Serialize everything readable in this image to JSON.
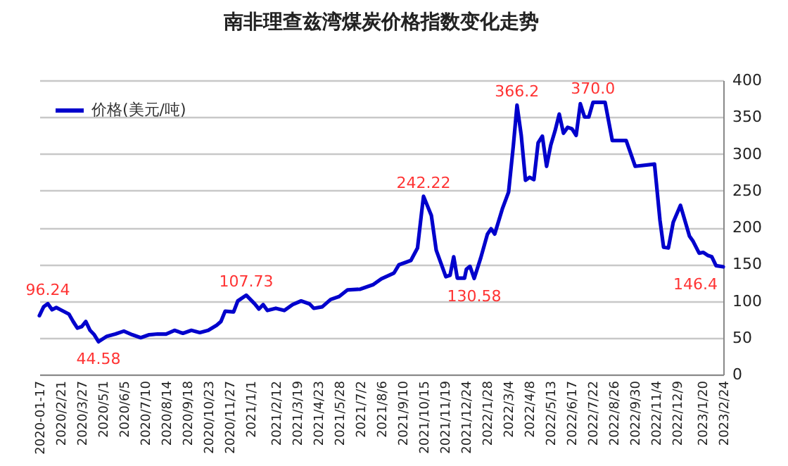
{
  "chart_data": {
    "type": "line",
    "title": "南非理查兹湾煤炭价格指数变化走势",
    "x": [
      "2020-01-17",
      "2020-01-24",
      "2020-01-31",
      "2020-02-07",
      "2020-02-14",
      "2020-02-21",
      "2020-03-06",
      "2020-03-13",
      "2020-03-20",
      "2020-03-27",
      "2020-04-03",
      "2020-04-10",
      "2020-04-17",
      "2020-04-24",
      "2020-05-08",
      "2020-05-22",
      "2020-06-05",
      "2020-06-19",
      "2020-07-03",
      "2020-07-17",
      "2020-07-31",
      "2020-08-14",
      "2020-08-28",
      "2020-09-11",
      "2020-09-25",
      "2020-10-09",
      "2020-10-23",
      "2020-11-06",
      "2020-11-13",
      "2020-11-20",
      "2020-12-04",
      "2020-12-11",
      "2020-12-25",
      "2021-01-08",
      "2021-01-15",
      "2021-01-22",
      "2021-01-29",
      "2021-02-12",
      "2021-02-26",
      "2021-03-12",
      "2021-03-26",
      "2021-04-09",
      "2021-04-16",
      "2021-04-30",
      "2021-05-14",
      "2021-05-28",
      "2021-06-11",
      "2021-07-02",
      "2021-07-23",
      "2021-08-06",
      "2021-08-27",
      "2021-09-04",
      "2021-09-24",
      "2021-10-05",
      "2021-10-13",
      "2021-10-15",
      "2021-10-28",
      "2021-11-05",
      "2021-11-21",
      "2021-11-28",
      "2021-12-04",
      "2021-12-10",
      "2021-12-22",
      "2021-12-25",
      "2021-12-31",
      "2022-01-07",
      "2022-01-18",
      "2022-01-29",
      "2022-02-04",
      "2022-02-10",
      "2022-02-23",
      "2022-03-05",
      "2022-03-13",
      "2022-03-19",
      "2022-03-26",
      "2022-04-02",
      "2022-04-09",
      "2022-04-16",
      "2022-04-23",
      "2022-04-30",
      "2022-05-07",
      "2022-05-14",
      "2022-05-21",
      "2022-05-28",
      "2022-06-04",
      "2022-06-11",
      "2022-06-18",
      "2022-06-25",
      "2022-07-02",
      "2022-07-09",
      "2022-07-16",
      "2022-07-23",
      "2022-08-12",
      "2022-08-24",
      "2022-09-16",
      "2022-10-01",
      "2022-11-02",
      "2022-11-11",
      "2022-11-17",
      "2022-11-25",
      "2022-12-03",
      "2022-12-15",
      "2022-12-30",
      "2023-01-05",
      "2023-01-15",
      "2023-01-22",
      "2023-01-29",
      "2023-02-05",
      "2023-02-12",
      "2023-02-24"
    ],
    "series": [
      {
        "name": "价格(美元/吨)",
        "color": "#0000cc",
        "values": [
          80,
          92,
          96.24,
          88,
          91,
          88,
          82,
          72,
          63,
          65,
          72,
          60,
          54,
          44.58,
          52,
          55,
          59,
          54,
          50,
          54,
          55,
          55,
          60,
          56,
          60,
          57,
          60,
          67,
          72,
          86,
          85,
          100,
          107.73,
          96,
          89,
          95,
          87,
          90,
          87,
          95,
          100,
          96,
          90,
          92,
          102,
          106,
          115,
          116,
          122,
          130,
          138,
          149,
          155,
          172,
          229,
          242.22,
          216,
          169,
          133,
          135,
          160,
          131,
          131,
          143,
          147,
          130.58,
          159,
          191,
          198,
          191,
          226,
          248,
          312,
          366.2,
          325,
          264,
          268,
          265,
          315,
          324,
          283,
          312,
          331,
          354,
          328,
          336,
          334,
          325,
          368,
          350,
          350,
          370.0,
          370,
          318,
          318,
          283,
          286,
          210,
          173,
          172,
          207,
          230,
          188,
          181,
          165,
          166,
          162,
          160,
          148,
          146.4
        ]
      }
    ],
    "xlim": [
      "2020-01-17",
      "2023-02-24"
    ],
    "xticks": [
      {
        "value": "2020-01-17",
        "label": "2020-01-17"
      },
      {
        "value": "2020-02-21",
        "label": "2020/2/21"
      },
      {
        "value": "2020-03-27",
        "label": "2020/3/27"
      },
      {
        "value": "2020-05-01",
        "label": "2020/5/1"
      },
      {
        "value": "2020-06-05",
        "label": "2020/6/5"
      },
      {
        "value": "2020-07-10",
        "label": "2020/7/10"
      },
      {
        "value": "2020-08-14",
        "label": "2020/8/14"
      },
      {
        "value": "2020-09-18",
        "label": "2020/9/18"
      },
      {
        "value": "2020-10-23",
        "label": "2020/10/23"
      },
      {
        "value": "2020-11-27",
        "label": "2020/11/27"
      },
      {
        "value": "2021-01-01",
        "label": "2021/1/1"
      },
      {
        "value": "2021-02-12",
        "label": "2021/2/12"
      },
      {
        "value": "2021-03-19",
        "label": "2021/3/19"
      },
      {
        "value": "2021-04-23",
        "label": "2021/4/23"
      },
      {
        "value": "2021-05-28",
        "label": "2021/5/28"
      },
      {
        "value": "2021-07-02",
        "label": "2021/7/2"
      },
      {
        "value": "2021-08-06",
        "label": "2021/8/6"
      },
      {
        "value": "2021-09-10",
        "label": "2021/9/10"
      },
      {
        "value": "2021-10-15",
        "label": "2021/10/15"
      },
      {
        "value": "2021-11-19",
        "label": "2021/11/19"
      },
      {
        "value": "2021-12-24",
        "label": "2021/12/24"
      },
      {
        "value": "2022-01-28",
        "label": "2022/1/28"
      },
      {
        "value": "2022-03-04",
        "label": "2022/3/4"
      },
      {
        "value": "2022-04-08",
        "label": "2022/4/8"
      },
      {
        "value": "2022-05-13",
        "label": "2022/5/13"
      },
      {
        "value": "2022-06-17",
        "label": "2022/6/17"
      },
      {
        "value": "2022-07-22",
        "label": "2022/7/22"
      },
      {
        "value": "2022-08-26",
        "label": "2022/8/26"
      },
      {
        "value": "2022-09-30",
        "label": "2022/9/30"
      },
      {
        "value": "2022-11-04",
        "label": "2022/11/4"
      },
      {
        "value": "2022-12-09",
        "label": "2022/12/9"
      },
      {
        "value": "2023-01-20",
        "label": "2023/1/20"
      },
      {
        "value": "2023-02-24",
        "label": "2023/2/24"
      }
    ],
    "ylim": [
      0,
      400
    ],
    "yticks": [
      0,
      50,
      100,
      150,
      200,
      250,
      300,
      350,
      400
    ],
    "grid": "y",
    "legend": "top left",
    "marker": "none",
    "line_style": "solid",
    "annotations": [
      {
        "text": "96.24",
        "x": "2020-01-31",
        "y": 96.24
      },
      {
        "text": "44.58",
        "x": "2020-04-24",
        "y": 44.58
      },
      {
        "text": "107.73",
        "x": "2020-12-25",
        "y": 107.73
      },
      {
        "text": "242.22",
        "x": "2021-10-15",
        "y": 242.22
      },
      {
        "text": "130.58",
        "x": "2022-01-07",
        "y": 130.58
      },
      {
        "text": "366.2",
        "x": "2022-03-19",
        "y": 366.2
      },
      {
        "text": "370.0",
        "x": "2022-07-23",
        "y": 370.0
      },
      {
        "text": "146.4",
        "x": "2023-02-24",
        "y": 146.4
      }
    ]
  }
}
